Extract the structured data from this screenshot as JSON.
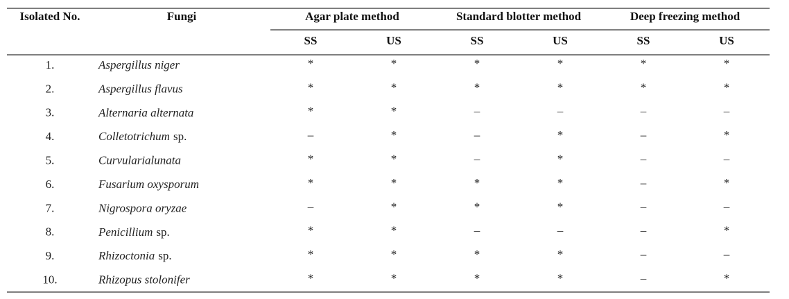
{
  "table": {
    "header": {
      "isolated_no": "Isolated No.",
      "fungi": "Fungi",
      "methods": [
        "Agar plate method",
        "Standard blotter method",
        "Deep freezing method"
      ],
      "subcolumns": [
        "SS",
        "US",
        "SS",
        "US",
        "SS",
        "US"
      ]
    },
    "rows": [
      {
        "no": "1.",
        "genus": "Aspergillus niger",
        "cells": [
          "*",
          "*",
          "*",
          "*",
          "*",
          "*"
        ]
      },
      {
        "no": "2.",
        "genus": "Aspergillus flavus",
        "cells": [
          "*",
          "*",
          "*",
          "*",
          "*",
          "*"
        ]
      },
      {
        "no": "3.",
        "genus": "Alternaria alternata",
        "cells": [
          "*",
          "*",
          "–",
          "–",
          "–",
          "–"
        ]
      },
      {
        "no": "4.",
        "genus": "Colletotrichum",
        "suffix": "sp.",
        "cells": [
          "–",
          "*",
          "–",
          "*",
          "–",
          "*"
        ]
      },
      {
        "no": "5.",
        "genus": "Curvularialunata",
        "cells": [
          "*",
          "*",
          "–",
          "*",
          "–",
          "–"
        ]
      },
      {
        "no": "6.",
        "genus": "Fusarium oxysporum",
        "cells": [
          "*",
          "*",
          "*",
          "*",
          "–",
          "*"
        ]
      },
      {
        "no": "7.",
        "genus": "Nigrospora oryzae",
        "cells": [
          "–",
          "*",
          "*",
          "*",
          "–",
          "–"
        ]
      },
      {
        "no": "8.",
        "genus": "Penicillium",
        "suffix": "sp.",
        "cells": [
          "*",
          "*",
          "–",
          "–",
          "–",
          "*"
        ]
      },
      {
        "no": "9.",
        "genus": "Rhizoctonia",
        "suffix": "sp.",
        "cells": [
          "*",
          "*",
          "*",
          "*",
          "–",
          "–"
        ]
      },
      {
        "no": "10.",
        "genus": "Rhizopus stolonifer",
        "cells": [
          "*",
          "*",
          "*",
          "*",
          "–",
          "*"
        ]
      }
    ]
  }
}
